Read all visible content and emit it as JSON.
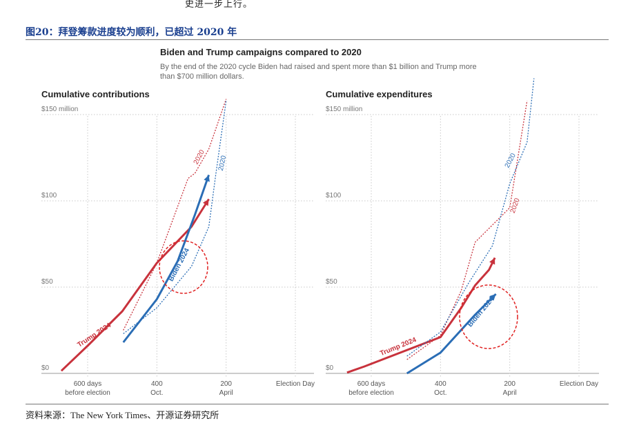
{
  "report": {
    "top_text": "史进一步上行。",
    "figure_title": "图20：拜登筹款进度较为顺利，已超过 2020 年",
    "source": "资料来源：The New York Times、开源证券研究所"
  },
  "header": {
    "title": "Biden and Trump campaigns compared to 2020",
    "subtitle": "By the end of the 2020 cycle Biden had raised and spent more than $1 billion and Trump more than $700 million dollars."
  },
  "colors": {
    "trump": "#c8323c",
    "biden": "#2a6db5",
    "grid": "#c8c8c8",
    "highlight": "#e02020"
  },
  "chart_data": [
    {
      "type": "line",
      "title": "Cumulative contributions",
      "xlabel": "days before election",
      "ylabel": "",
      "xlim": [
        700,
        0
      ],
      "ylim": [
        0,
        150
      ],
      "y_ticks": [
        {
          "value": 0,
          "label": "$0"
        },
        {
          "value": 50,
          "label": "$50"
        },
        {
          "value": 100,
          "label": "$100"
        },
        {
          "value": 150,
          "label": "$150 million"
        }
      ],
      "x_ticks": [
        {
          "value": 600,
          "line1": "600 days",
          "line2": "before election"
        },
        {
          "value": 400,
          "line1": "400",
          "line2": "Oct."
        },
        {
          "value": 200,
          "line1": "200",
          "line2": "April"
        },
        {
          "value": 0,
          "line1": "Election Day",
          "line2": ""
        }
      ],
      "series": [
        {
          "name": "Trump 2024",
          "color_key": "trump",
          "style": "solid",
          "x": [
            676,
            600,
            500,
            400,
            300,
            250
          ],
          "y": [
            1.5,
            16,
            36,
            64,
            85,
            101
          ]
        },
        {
          "name": "Biden 2024",
          "color_key": "biden",
          "style": "solid",
          "x": [
            497,
            400,
            340,
            290,
            250
          ],
          "y": [
            18,
            43,
            65,
            92,
            115
          ]
        },
        {
          "name": "Trump 2020",
          "color_key": "trump",
          "style": "dotted",
          "x": [
            497,
            400,
            310,
            290,
            250,
            200
          ],
          "y": [
            25,
            64,
            113,
            116,
            130,
            159
          ]
        },
        {
          "name": "Biden 2020",
          "color_key": "biden",
          "style": "dotted",
          "x": [
            497,
            400,
            300,
            250,
            230,
            200
          ],
          "y": [
            23,
            38,
            62,
            85,
            115,
            158
          ]
        }
      ],
      "labels": [
        {
          "text": "Trump 2024",
          "color_key": "trump"
        },
        {
          "text": "Biden 2024",
          "color_key": "biden"
        },
        {
          "text": "2020",
          "color_key": "trump"
        },
        {
          "text": "2020",
          "color_key": "biden"
        }
      ]
    },
    {
      "type": "line",
      "title": "Cumulative expenditures",
      "xlabel": "days before election",
      "ylabel": "",
      "xlim": [
        700,
        0
      ],
      "ylim": [
        0,
        150
      ],
      "y_ticks": [
        {
          "value": 0,
          "label": "$0"
        },
        {
          "value": 50,
          "label": "$50"
        },
        {
          "value": 100,
          "label": "$100"
        },
        {
          "value": 150,
          "label": "$150 million"
        }
      ],
      "x_ticks": [
        {
          "value": 600,
          "line1": "600 days",
          "line2": "before election"
        },
        {
          "value": 400,
          "line1": "400",
          "line2": "Oct."
        },
        {
          "value": 200,
          "line1": "200",
          "line2": "April"
        },
        {
          "value": 0,
          "line1": "Election Day",
          "line2": ""
        }
      ],
      "series": [
        {
          "name": "Trump 2024",
          "color_key": "trump",
          "style": "solid",
          "x": [
            670,
            620,
            400,
            340,
            300,
            260,
            243
          ],
          "y": [
            0.5,
            4,
            21,
            38,
            51,
            60,
            67
          ]
        },
        {
          "name": "Biden 2024",
          "color_key": "biden",
          "style": "solid",
          "x": [
            497,
            400,
            300,
            240
          ],
          "y": [
            0,
            12,
            34,
            46
          ]
        },
        {
          "name": "Trump 2020",
          "color_key": "trump",
          "style": "dotted",
          "x": [
            497,
            400,
            340,
            300,
            200,
            150
          ],
          "y": [
            8,
            22,
            48,
            76,
            96,
            158
          ]
        },
        {
          "name": "Biden 2020",
          "color_key": "biden",
          "style": "dotted",
          "x": [
            497,
            400,
            320,
            250,
            200,
            150,
            130
          ],
          "y": [
            10,
            24,
            52,
            74,
            110,
            134,
            171
          ]
        }
      ],
      "labels": [
        {
          "text": "Trump 2024",
          "color_key": "trump"
        },
        {
          "text": "Biden 2024",
          "color_key": "biden"
        },
        {
          "text": "2020",
          "color_key": "biden"
        },
        {
          "text": "2020",
          "color_key": "trump"
        }
      ]
    }
  ]
}
